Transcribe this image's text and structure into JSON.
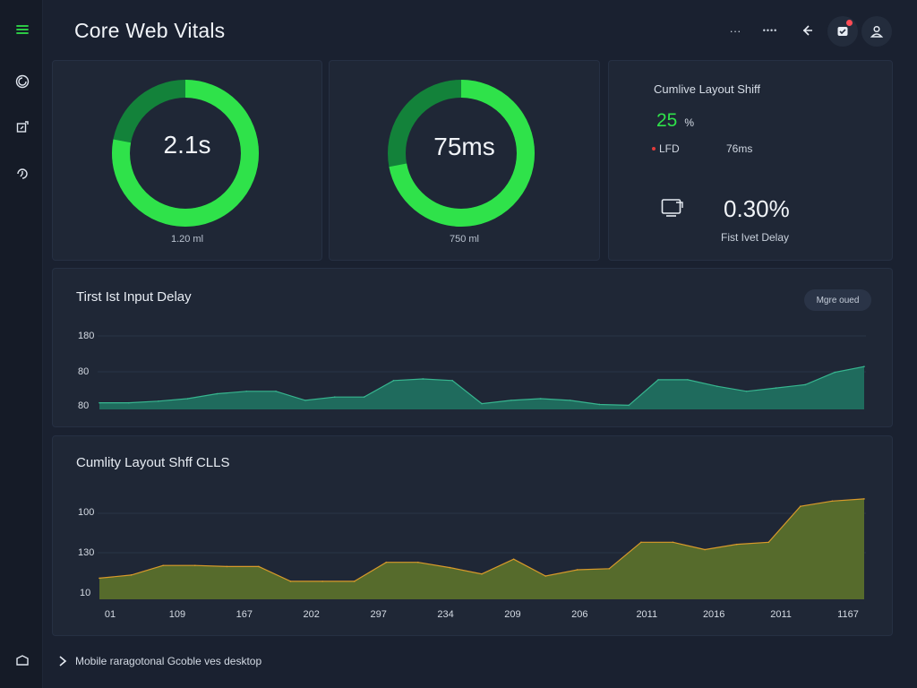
{
  "page": {
    "title": "Core Web Vitals"
  },
  "topbar": {
    "more_label": "···",
    "dots_label": "••••"
  },
  "colors": {
    "accent": "#2fe24a",
    "teal": "#1f6b5d",
    "olive": "#566b2c",
    "orange": "#d89a2a"
  },
  "gauges": [
    {
      "value": "2.1s",
      "caption": "1.20 ml",
      "progress": 0.78
    },
    {
      "value": "75ms",
      "caption": "750 ml",
      "progress": 0.72
    }
  ],
  "cls_card": {
    "title": "Cumlive Layout Shiff",
    "score": "25",
    "score_unit": "%",
    "legend_label": "LFD",
    "legend_value": "76ms",
    "big_value": "0.30%",
    "big_caption": "Fist Ivet Delay"
  },
  "chart_data": [
    {
      "type": "area",
      "title": "Tirst Ist Input Delay",
      "button_label": "Mgre oued",
      "ytick_labels": [
        "180",
        "80",
        "80"
      ],
      "ylim": [
        0,
        100
      ],
      "values": [
        8,
        8,
        10,
        13,
        19,
        22,
        22,
        11,
        15,
        15,
        35,
        37,
        35,
        7,
        11,
        13,
        11,
        6,
        5,
        36,
        36,
        28,
        22,
        26,
        30,
        45,
        52
      ],
      "color": "#1f6b5d",
      "stroke": "#37b58f"
    },
    {
      "type": "area",
      "title": "Cumlity Layout Shff CLLS",
      "ytick_labels": [
        "100",
        "130",
        "10"
      ],
      "xtick_labels": [
        "01",
        "109",
        "167",
        "202",
        "297",
        "234",
        "209",
        "206",
        "2011",
        "2016",
        "2011",
        "1167"
      ],
      "ylim": [
        0,
        100
      ],
      "values": [
        20,
        23,
        32,
        32,
        31,
        31,
        17,
        17,
        17,
        35,
        35,
        30,
        24,
        38,
        22,
        28,
        29,
        54,
        54,
        47,
        52,
        54,
        88,
        93,
        95
      ],
      "color": "#566b2c",
      "stroke": "#d89a2a"
    }
  ],
  "footer": {
    "text": "Mobile raragotonal Gcoble ves desktop"
  }
}
